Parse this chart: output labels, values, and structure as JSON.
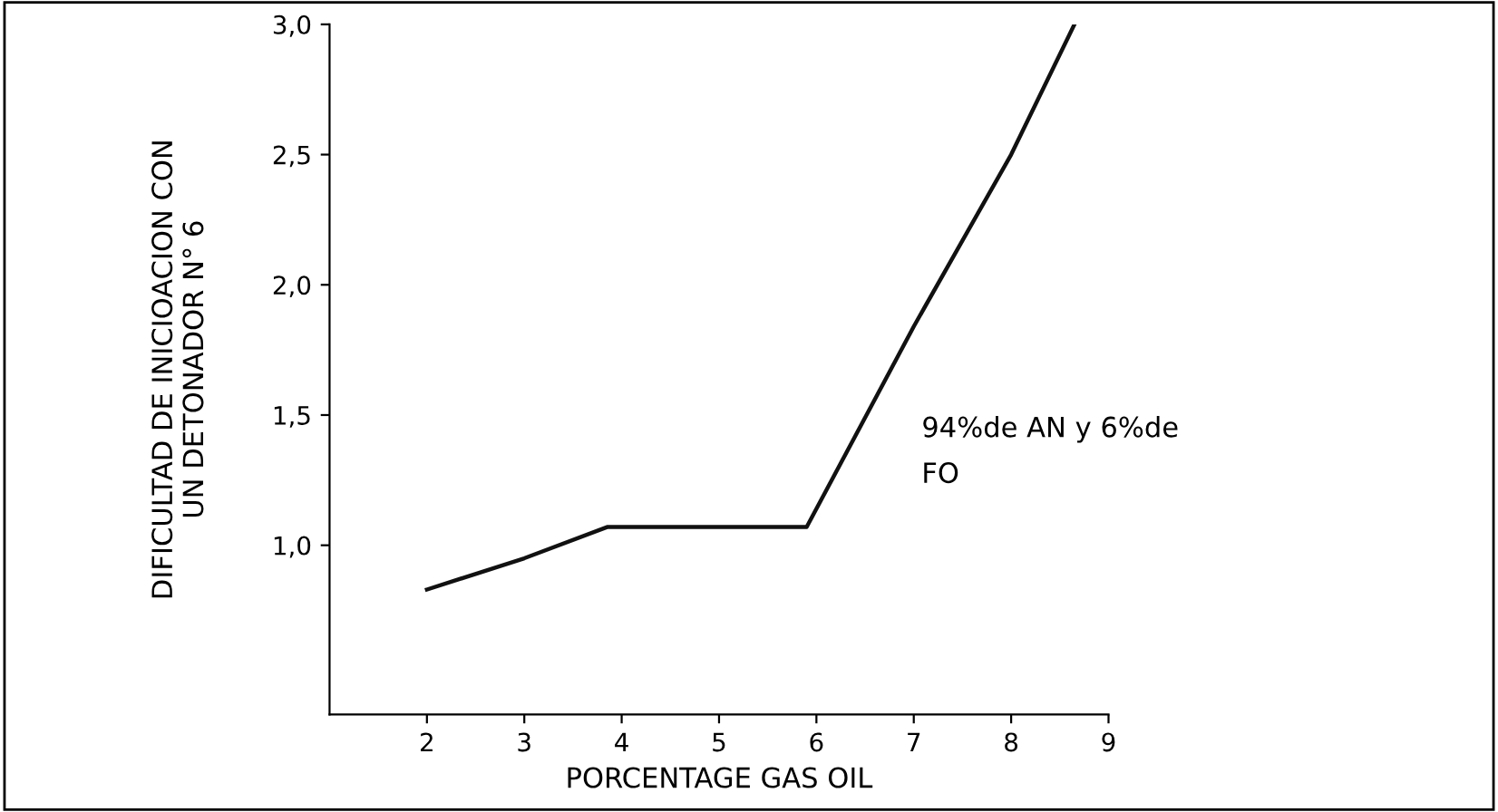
{
  "chart_data": {
    "type": "line",
    "xlabel": "PORCENTAGE GAS OIL",
    "ylabel": "DIFICULTAD DE INICIOACION CON\nUN DETONADOR N° 6",
    "x": [
      2,
      3,
      3.85,
      5.9,
      7,
      8,
      8.65
    ],
    "series": [
      {
        "color": "#111111",
        "values": [
          0.83,
          0.95,
          1.07,
          1.07,
          1.84,
          2.5,
          3.0
        ]
      }
    ],
    "xlim": [
      1,
      9
    ],
    "xticks": [
      2,
      3,
      4,
      5,
      6,
      7,
      8,
      9
    ],
    "ylim": [
      0.35,
      3.0
    ],
    "yticks": [
      {
        "value": 1.0,
        "label": "1,0"
      },
      {
        "value": 1.5,
        "label": "1,5"
      },
      {
        "value": 2.0,
        "label": "2,0"
      },
      {
        "value": 2.5,
        "label": "2,5"
      },
      {
        "value": 3.0,
        "label": "3,0"
      }
    ],
    "annotations": [
      "94%de AN y 6%de\nFO"
    ],
    "grid": false,
    "marker": "none",
    "line_style": "solid"
  }
}
